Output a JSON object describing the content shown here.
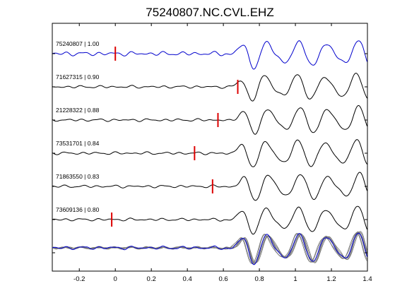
{
  "chart_data": {
    "type": "line",
    "title": "75240807.NC.CVL.EHZ",
    "xlabel": "",
    "ylabel": "",
    "xlim": [
      -0.35,
      1.4
    ],
    "xticks": [
      -0.2,
      0,
      0.2,
      0.4,
      0.6,
      0.8,
      1,
      1.2,
      1.4
    ],
    "xtick_labels": [
      "-0.2",
      "0",
      "0.2",
      "0.4",
      "0.6",
      "0.8",
      "1",
      "1.2",
      "1.4"
    ],
    "grid": false,
    "colors": {
      "master": "#0000cc",
      "trace": "#000000",
      "stack": "#777777",
      "pick": "#dd0000"
    },
    "traces": [
      {
        "label": "75240807 | 1.00",
        "pick": 0.0,
        "onset": -0.3,
        "color": "master",
        "amp": 1.0
      },
      {
        "label": "71627315 | 0.90",
        "pick": 0.68,
        "onset": 0.55,
        "color": "trace",
        "amp": 1.0
      },
      {
        "label": "21228322 | 0.88",
        "pick": 0.57,
        "onset": 0.45,
        "color": "trace",
        "amp": 1.0
      },
      {
        "label": "73531701 | 0.84",
        "pick": 0.44,
        "onset": 0.3,
        "color": "trace",
        "amp": 1.0
      },
      {
        "label": "71863550 | 0.83",
        "pick": 0.54,
        "onset": 0.5,
        "color": "trace",
        "amp": 1.0
      },
      {
        "label": "73609136 | 0.80",
        "pick": -0.02,
        "onset": -0.3,
        "color": "trace",
        "amp": 1.0
      }
    ],
    "overlay_row": {
      "count": 6,
      "note_none": ""
    }
  }
}
